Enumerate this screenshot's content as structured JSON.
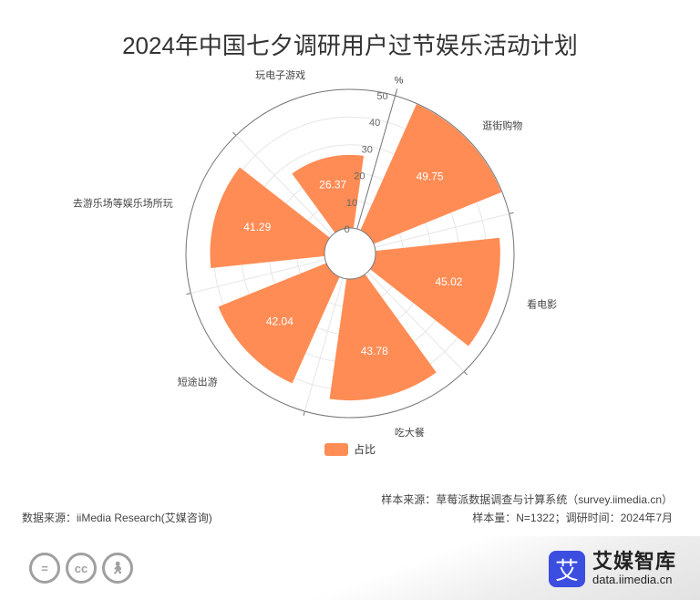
{
  "title": "2024年中国七夕调研用户过节娱乐活动计划",
  "chart_data": {
    "type": "polar-bar",
    "title": "2024年中国七夕调研用户过节娱乐活动计划",
    "radius_axis_unit": "%",
    "radius_max": 50,
    "radius_ticks": [
      "0",
      "10",
      "20",
      "30",
      "40",
      "50"
    ],
    "categories": [
      "逛街购物",
      "看电影",
      "吃大餐",
      "短途出游",
      "去游乐场等娱乐场所玩",
      "玩电子游戏"
    ],
    "values": [
      49.75,
      45.02,
      43.78,
      42.04,
      41.29,
      26.37
    ],
    "value_labels": [
      "49.75",
      "45.02",
      "43.78",
      "42.04",
      "41.29",
      "26.37"
    ],
    "series": [
      {
        "name": "占比",
        "values": [
          49.75,
          45.02,
          43.78,
          42.04,
          41.29,
          26.37
        ]
      }
    ],
    "legend_position": "bottom-center",
    "grid": true
  },
  "colors": {
    "bar": "#ff8c55",
    "axis": "#777777",
    "grid": "#e6e6e6"
  },
  "legend": {
    "label": "占比"
  },
  "footer": {
    "source_left": "数据来源：iiMedia Research(艾媒咨询)",
    "sample_source": "样本来源：草莓派数据调查与计算系统（survey.iimedia.cn）",
    "sample_size": "样本量：N=1322；调研时间：2024年7月"
  },
  "license_icons": [
    "equals-icon",
    "cc-icon",
    "person-icon"
  ],
  "brand": {
    "logo_char": "艾",
    "name": "艾媒智库",
    "url": "data.iimedia.cn"
  }
}
